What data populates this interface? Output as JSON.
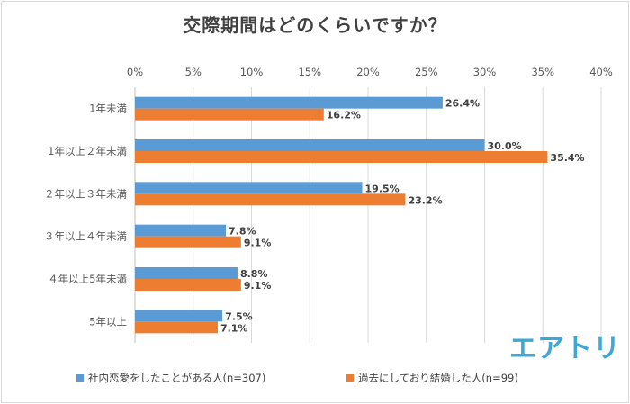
{
  "chart_data": {
    "type": "bar",
    "orientation": "horizontal",
    "title": "交際期間はどのくらいですか？",
    "categories": [
      "1年未満",
      "1年以上２年未満",
      "２年以上３年未満",
      "３年以上４年未満",
      "４年以上5年未満",
      "5年以上"
    ],
    "series": [
      {
        "name": "社内恋愛をしたことがある人(n=307)",
        "color": "#5b9bd5",
        "values": [
          26.4,
          30.0,
          19.5,
          7.8,
          8.8,
          7.5
        ]
      },
      {
        "name": "過去にしており結婚した人(n=99)",
        "color": "#ed7d31",
        "values": [
          16.2,
          35.4,
          23.2,
          9.1,
          9.1,
          7.1
        ]
      }
    ],
    "xlim": [
      0,
      40
    ],
    "xticks": [
      "0%",
      "5%",
      "10%",
      "15%",
      "20%",
      "25%",
      "30%",
      "35%",
      "40%"
    ],
    "data_labels": [
      [
        "26.4%",
        "30.0%",
        "19.5%",
        "7.8%",
        "8.8%",
        "7.5%"
      ],
      [
        "16.2%",
        "35.4%",
        "23.2%",
        "9.1%",
        "9.1%",
        "7.1%"
      ]
    ],
    "grid": true,
    "legend": "bottom"
  },
  "logo_text": "エアトリ"
}
